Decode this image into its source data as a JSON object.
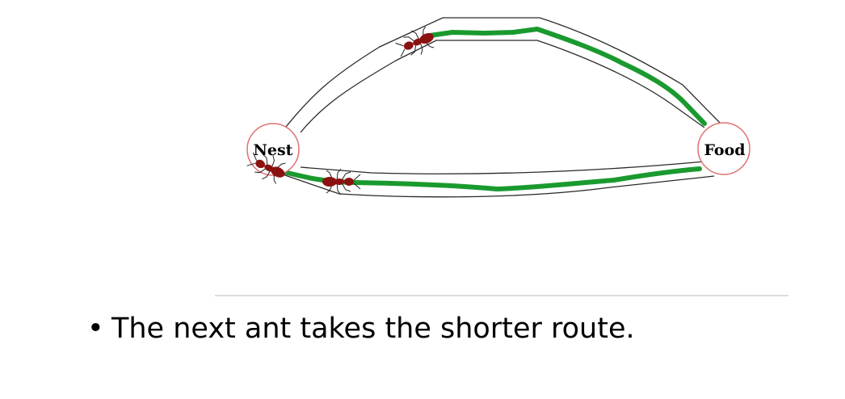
{
  "diagram": {
    "nest_label": "Nest",
    "food_label": "Food",
    "colors": {
      "trail": "#1a9a2e",
      "tunnel_outline": "#2a2a2a",
      "node_border": "#e07070",
      "ant_body": "#8b1111"
    }
  },
  "caption": {
    "bullet": "•",
    "text": "The next ant takes the shorter route."
  }
}
